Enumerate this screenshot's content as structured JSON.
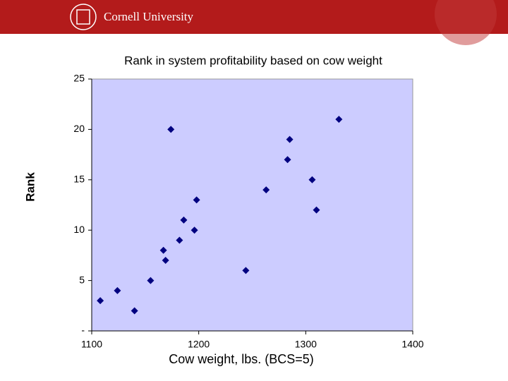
{
  "header": {
    "brand": "Cornell University"
  },
  "chart_data": {
    "type": "scatter",
    "title": "Rank in system profitability based on cow weight",
    "x_label": "Cow weight, lbs. (BCS=5)",
    "y_label": "Rank",
    "x": [
      1108,
      1124,
      1140,
      1155,
      1169,
      1167,
      1174,
      1182,
      1186,
      1196,
      1198,
      1244,
      1263,
      1283,
      1285,
      1306,
      1310,
      1331
    ],
    "values": [
      3,
      4,
      2,
      5,
      7,
      8,
      20,
      9,
      11,
      10,
      13,
      6,
      14,
      17,
      19,
      15,
      12,
      21
    ],
    "color": "#000080",
    "plot_background": "#ccccff",
    "xlim": [
      1100,
      1400
    ],
    "xticks": [
      1100,
      1200,
      1300,
      1400
    ],
    "ylim": [
      0,
      25
    ],
    "yticks": [
      {
        "value": 0,
        "label": "-"
      },
      5,
      10,
      15,
      20,
      25
    ]
  }
}
